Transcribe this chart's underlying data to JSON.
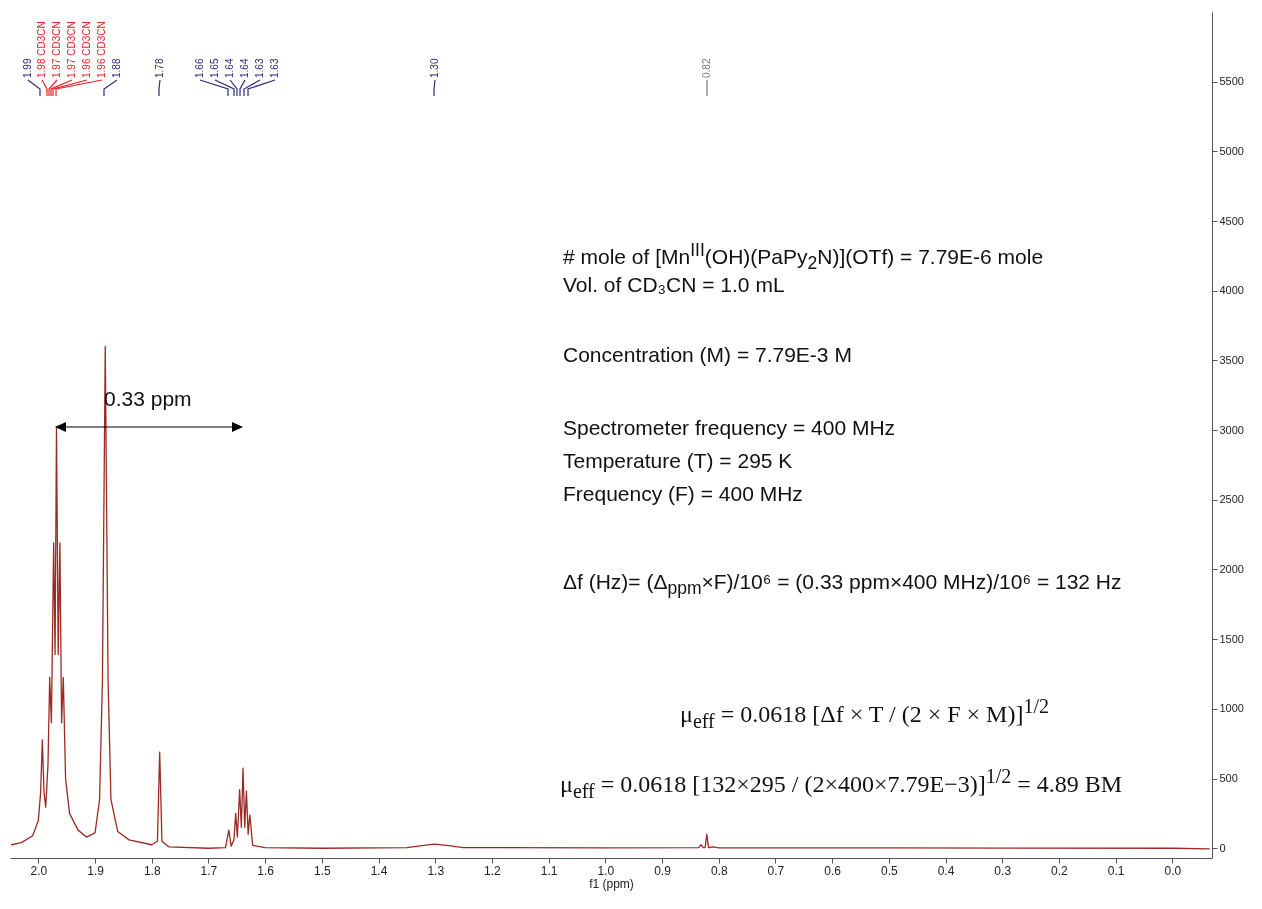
{
  "chart_data": {
    "type": "line",
    "xlabel": "f1 (ppm)",
    "xlim": [
      2.05,
      -0.07
    ],
    "xticks": [
      {
        "value": 2,
        "label": "2.0"
      },
      1.9,
      1.8,
      1.7,
      1.6,
      1.5,
      1.4,
      1.3,
      1.2,
      1.1,
      {
        "value": 1,
        "label": "1.0"
      },
      0.9,
      0.8,
      0.7,
      0.6,
      0.5,
      0.4,
      0.3,
      0.2,
      0.1,
      {
        "value": 0,
        "label": "0.0"
      }
    ],
    "ylim": [
      -70,
      6000
    ],
    "yticks": [
      0,
      500,
      1000,
      1500,
      2000,
      2500,
      3000,
      3500,
      4000,
      4500,
      5000,
      5500
    ],
    "grid": false,
    "marker": "none",
    "line_style": "solid",
    "series": [
      {
        "color": "#9b2a24",
        "x": [
          2.047,
          2.03,
          2.01,
          2.0,
          1.996,
          1.993,
          1.99,
          1.987,
          1.983,
          1.98,
          1.977,
          1.973,
          1.9705,
          1.968,
          1.965,
          1.962,
          1.959,
          1.956,
          1.952,
          1.945,
          1.93,
          1.915,
          1.9,
          1.892,
          1.887,
          1.882,
          1.877,
          1.872,
          1.86,
          1.84,
          1.8,
          1.79,
          1.786,
          1.782,
          1.77,
          1.7,
          1.67,
          1.664,
          1.66,
          1.655,
          1.652,
          1.649,
          1.645,
          1.642,
          1.639,
          1.636,
          1.633,
          1.63,
          1.627,
          1.622,
          1.6,
          1.5,
          1.35,
          1.32,
          1.302,
          1.28,
          1.25,
          1.0,
          0.835,
          0.831,
          0.827,
          0.824,
          0.821,
          0.818,
          0.81,
          0.8,
          0.5,
          0.0,
          -0.065
        ],
        "values": [
          25,
          40,
          90,
          200,
          400,
          777,
          400,
          295,
          600,
          1225,
          900,
          2190,
          1390,
          3020,
          1390,
          2190,
          900,
          1225,
          500,
          250,
          130,
          80,
          110,
          350,
          1200,
          3600,
          1200,
          350,
          120,
          60,
          25,
          50,
          690,
          50,
          10,
          0,
          5,
          130,
          15,
          60,
          250,
          80,
          420,
          150,
          575,
          150,
          410,
          100,
          240,
          20,
          5,
          0,
          5,
          20,
          30,
          20,
          5,
          2,
          5,
          25,
          5,
          5,
          100,
          5,
          10,
          3,
          2,
          0,
          -5
        ]
      }
    ],
    "annotations": [
      "1.99",
      "1.98 CD3CN",
      "1.97 CD3CN",
      "1.97 CD3CN",
      "1.96 CD3CN",
      "1.96 CD3CN",
      "1.88",
      "1.78",
      "1.66",
      "1.65",
      "1.64",
      "1.64",
      "1.63",
      "1.63",
      "1.30",
      "0.82",
      "0.33 ppm",
      "# mole of [Mn$^{III}$(OH)(PaPy$_{2}$N)](OTf)  = 7.79E-6 mole",
      "Vol. of CD₃CN = 1.0 mL",
      "Concentration (M) = 7.79E-3 M",
      "Spectrometer frequency = 400 MHz",
      "Temperature (T) = 295 K",
      "Frequency (F) = 400 MHz",
      "Δf (Hz)= (Δ$_{ppm}$×F)/10⁶ = (0.33 ppm×400 MHz)/10⁶ = 132 Hz",
      "μ$_{eff}$ = 0.0618 [Δf × T / (2 × F × M)]$^{1/2}$",
      "μ$_{eff}$ = 0.0618 [132×295 / (2×400×7.79E−3)]$^{1/2}$ = 4.89 BM"
    ]
  }
}
